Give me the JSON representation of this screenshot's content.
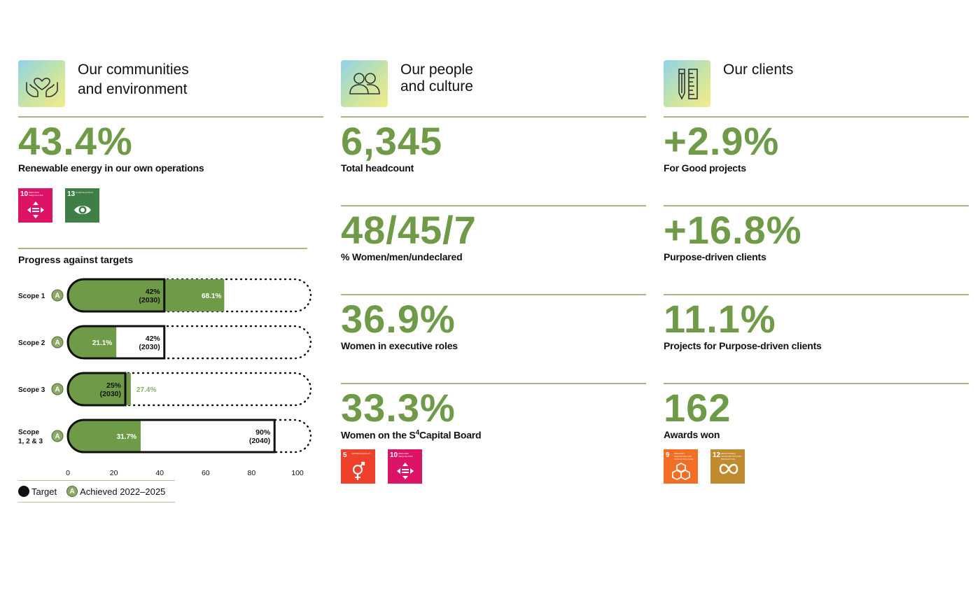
{
  "columns": {
    "communities": {
      "title_line1": "Our communities",
      "title_line2": "and environment",
      "icon": "hands-heart-icon",
      "metric": {
        "value": "43.4%",
        "label": "Renewable energy in our own operations"
      },
      "sdgs": [
        {
          "num": "10",
          "text": "Reduced Inequalities",
          "color": "#dd1367",
          "icon": "equality-arrows-icon"
        },
        {
          "num": "13",
          "text": "Climate Action",
          "color": "#3f7e44",
          "icon": "eye-globe-icon"
        }
      ]
    },
    "people": {
      "title_line1": "Our people",
      "title_line2": "and culture",
      "icon": "people-icon",
      "metrics": [
        {
          "value": "6,345",
          "label": "Total headcount"
        },
        {
          "value": "48/45/7",
          "label": "% Women/men/undeclared"
        },
        {
          "value": "36.9%",
          "label": "Women in executive roles"
        },
        {
          "value": "33.3%",
          "label_pre": "Women on the S",
          "label_sup": "4",
          "label_post": "Capital Board"
        }
      ],
      "sdgs": [
        {
          "num": "5",
          "text": "Gender Equality",
          "color": "#ef402b",
          "icon": "gender-icon"
        },
        {
          "num": "10",
          "text": "Reduced Inequalities",
          "color": "#dd1367",
          "icon": "equality-arrows-icon"
        }
      ]
    },
    "clients": {
      "title_line1": "Our clients",
      "icon": "pencil-ruler-icon",
      "metrics": [
        {
          "value": "+2.9%",
          "label": "For Good projects"
        },
        {
          "value": "+16.8%",
          "label": "Purpose-driven clients"
        },
        {
          "value": "11.1%",
          "label": "Projects for Purpose-driven clients"
        },
        {
          "value": "162",
          "label": "Awards won"
        }
      ],
      "sdgs": [
        {
          "num": "9",
          "text": "Industry, Innovation and Infrastructure",
          "color": "#f36d25",
          "icon": "cubes-icon"
        },
        {
          "num": "12",
          "text": "Responsible Consumption and Production",
          "color": "#bf8b2e",
          "icon": "infinity-icon"
        }
      ]
    }
  },
  "progress": {
    "title": "Progress against targets",
    "legend_target": "Target",
    "legend_achieved": "Achieved 2022–2025",
    "legend_badge": "A"
  },
  "chart_data": {
    "type": "bar",
    "orientation": "horizontal",
    "title": "Progress against targets",
    "categories": [
      "Scope 1",
      "Scope 2",
      "Scope 3",
      "Scope 1, 2 & 3"
    ],
    "category_lines": [
      [
        "Scope 1"
      ],
      [
        "Scope 2"
      ],
      [
        "Scope 3"
      ],
      [
        "Scope",
        "1, 2 & 3"
      ]
    ],
    "series": [
      {
        "name": "Achieved 2022–2025",
        "values": [
          68.1,
          21.1,
          27.4,
          31.7
        ],
        "labels": [
          "68.1%",
          "21.1%",
          "27.4%",
          "31.7%"
        ]
      },
      {
        "name": "Target",
        "values": [
          42,
          42,
          25,
          90
        ],
        "labels": [
          [
            "42%",
            "(2030)"
          ],
          [
            "42%",
            "(2030)"
          ],
          [
            "25%",
            "(2030)"
          ],
          [
            "90%",
            "(2040)"
          ]
        ]
      }
    ],
    "xlim": [
      0,
      100
    ],
    "xticks": [
      0,
      20,
      40,
      60,
      80,
      100
    ],
    "badge": "A",
    "colors": {
      "achieved": "#6f9b48",
      "achieved_text": "#8aae66",
      "target_border": "#111111"
    }
  }
}
